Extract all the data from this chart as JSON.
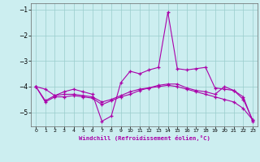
{
  "xlabel": "Windchill (Refroidissement éolien,°C)",
  "line1_x": [
    0,
    1,
    2,
    3,
    4,
    5,
    6,
    7,
    8,
    9,
    10,
    11,
    12,
    13,
    14,
    15,
    16,
    17,
    18,
    19,
    20,
    21,
    22,
    23
  ],
  "line1_y": [
    -4.0,
    -4.1,
    -4.35,
    -4.2,
    -4.1,
    -4.2,
    -4.3,
    -5.35,
    -5.15,
    -3.85,
    -3.4,
    -3.5,
    -3.35,
    -3.25,
    -1.1,
    -3.3,
    -3.35,
    -3.3,
    -3.25,
    -4.05,
    -4.1,
    -4.15,
    -4.5,
    -5.3
  ],
  "line2_x": [
    0,
    1,
    2,
    3,
    4,
    5,
    6,
    7,
    8,
    9,
    10,
    11,
    12,
    13,
    14,
    15,
    16,
    17,
    18,
    19,
    20,
    21,
    22,
    23
  ],
  "line2_y": [
    -4.0,
    -4.55,
    -4.35,
    -4.3,
    -4.3,
    -4.35,
    -4.4,
    -4.6,
    -4.5,
    -4.35,
    -4.2,
    -4.1,
    -4.05,
    -4.0,
    -3.95,
    -4.0,
    -4.1,
    -4.2,
    -4.3,
    -4.4,
    -4.5,
    -4.6,
    -4.85,
    -5.3
  ],
  "line3_x": [
    0,
    1,
    2,
    3,
    4,
    5,
    6,
    7,
    8,
    9,
    10,
    11,
    12,
    13,
    14,
    15,
    16,
    17,
    18,
    19,
    20,
    21,
    22,
    23
  ],
  "line3_y": [
    -4.0,
    -4.6,
    -4.4,
    -4.4,
    -4.35,
    -4.4,
    -4.45,
    -4.7,
    -4.55,
    -4.4,
    -4.3,
    -4.15,
    -4.05,
    -3.95,
    -3.9,
    -3.9,
    -4.05,
    -4.15,
    -4.2,
    -4.3,
    -4.0,
    -4.15,
    -4.4,
    -5.35
  ],
  "line_color": "#aa00aa",
  "bg_color": "#cceef0",
  "grid_color": "#99cccc",
  "ylim": [
    -5.55,
    -0.75
  ],
  "xlim": [
    -0.5,
    23.5
  ],
  "yticks": [
    -5,
    -4,
    -3,
    -2,
    -1
  ],
  "xticks": [
    0,
    1,
    2,
    3,
    4,
    5,
    6,
    7,
    8,
    9,
    10,
    11,
    12,
    13,
    14,
    15,
    16,
    17,
    18,
    19,
    20,
    21,
    22,
    23
  ]
}
